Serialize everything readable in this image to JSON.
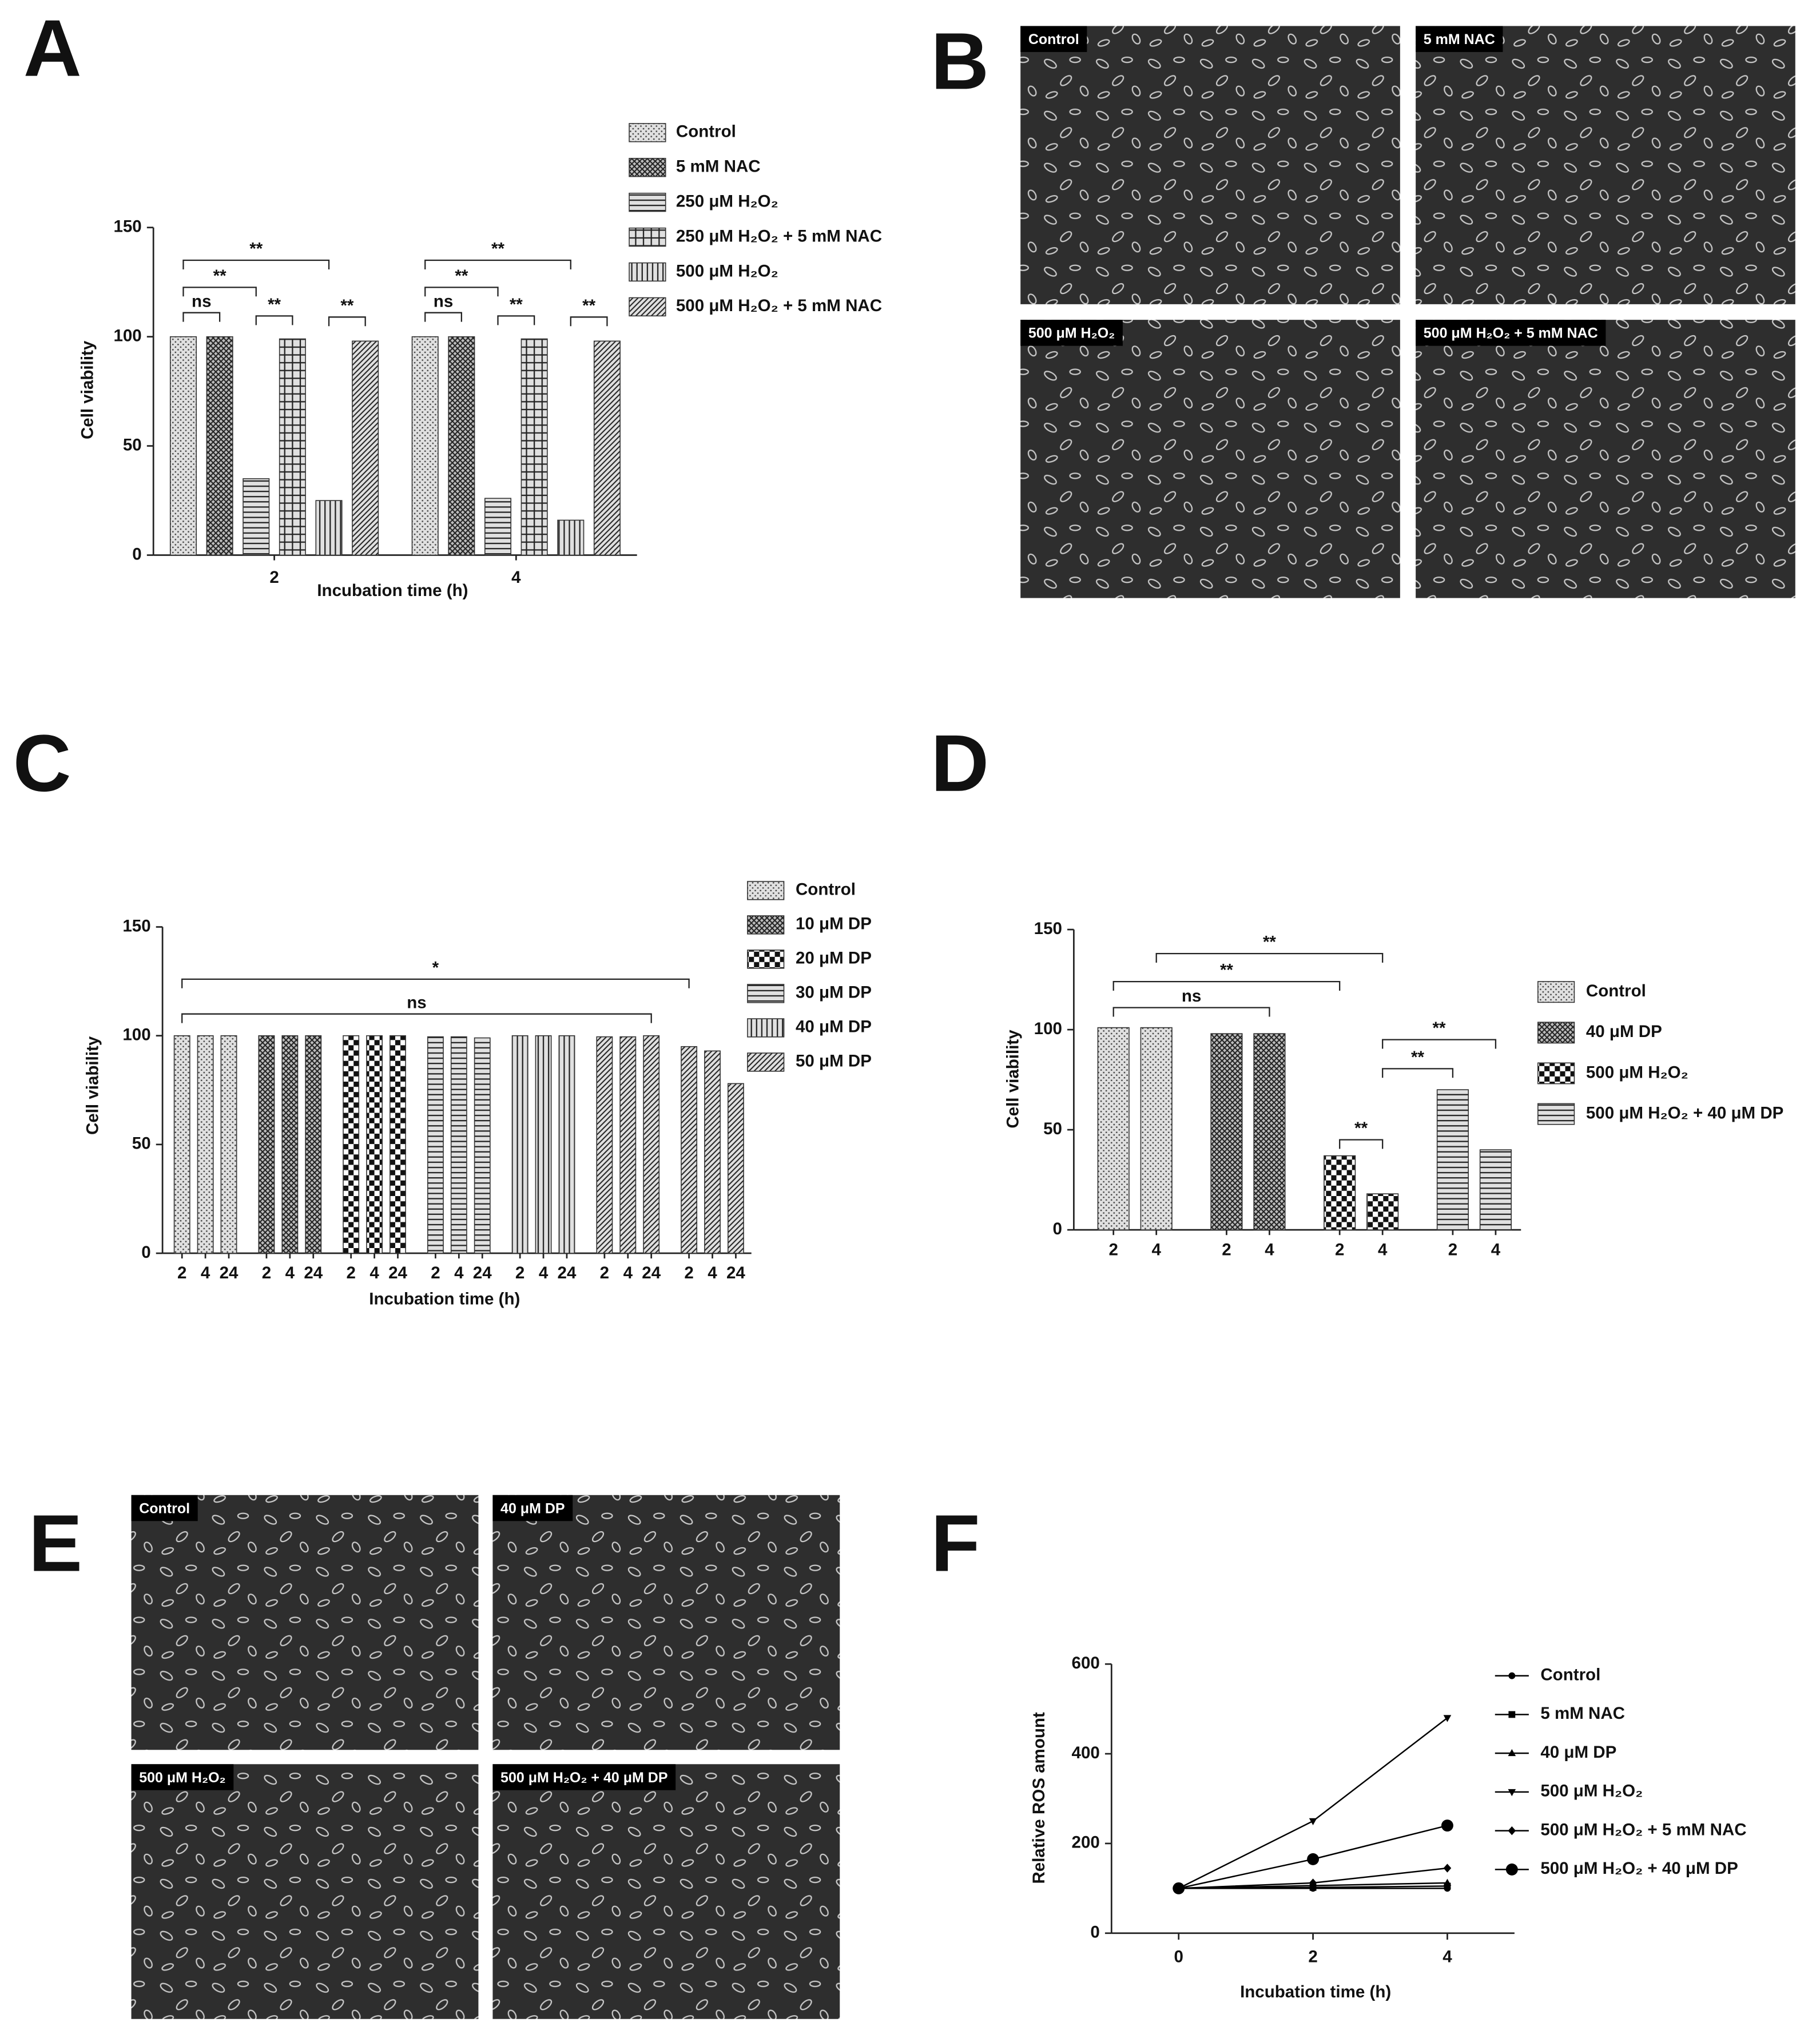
{
  "chart_data": [
    {
      "type": "bar",
      "panel_label": "A",
      "y_label": "Cell viability",
      "x_label": "Incubation time (h)",
      "categories": [
        "2",
        "4"
      ],
      "series": [
        {
          "name": "Control",
          "color": "#e0e0e0",
          "pattern": "dots",
          "values": [
            100,
            100
          ]
        },
        {
          "name": "5 mM NAC",
          "color": "#bdbdbd",
          "pattern": "crosshatch",
          "values": [
            100,
            100
          ]
        },
        {
          "name": "250 μM H₂O₂",
          "color": "#e0e0e0",
          "pattern": "hlines",
          "values": [
            35,
            26
          ]
        },
        {
          "name": "250 μM H₂O₂ + 5 mM NAC",
          "color": "#e0e0e0",
          "pattern": "grid",
          "values": [
            99,
            99
          ]
        },
        {
          "name": "500 μM H₂O₂",
          "color": "#e0e0e0",
          "pattern": "vlines",
          "values": [
            25,
            16
          ]
        },
        {
          "name": "500 μM H₂O₂ + 5 mM NAC",
          "color": "#e0e0e0",
          "pattern": "diag",
          "values": [
            98,
            98
          ]
        }
      ],
      "ylim": [
        0,
        150
      ],
      "yticks": [
        0,
        50,
        100,
        150
      ],
      "annotations": [
        "**",
        "**",
        "ns",
        "**",
        "**",
        "**",
        "**",
        "ns",
        "**",
        "**"
      ]
    },
    {
      "type": "bar",
      "panel_label": "C",
      "y_label": "Cell viability",
      "x_label": "Incubation time (h)",
      "categories": [
        "2",
        "4",
        "24"
      ],
      "series": [
        {
          "name": "Control",
          "color": "#e0e0e0",
          "pattern": "dots",
          "values": [
            100,
            100,
            100
          ]
        },
        {
          "name": "10 μM DP",
          "color": "#bdbdbd",
          "pattern": "crosshatch",
          "values": [
            100,
            100,
            100
          ]
        },
        {
          "name": "20 μM DP",
          "color": "#ffffff",
          "pattern": "checker",
          "values": [
            100,
            100,
            100
          ]
        },
        {
          "name": "30 μM DP",
          "color": "#e0e0e0",
          "pattern": "hlines",
          "values": [
            99.5,
            99.5,
            99
          ]
        },
        {
          "name": "40 μM DP",
          "color": "#e0e0e0",
          "pattern": "vlines",
          "values": [
            100,
            100,
            100
          ]
        },
        {
          "name": "50 μM DP",
          "color": "#e0e0e0",
          "pattern": "diag",
          "values": [
            99.5,
            99.5,
            100
          ]
        },
        {
          "name": null,
          "color": "#e0e0e0",
          "pattern": "diag",
          "values": [
            95,
            93,
            78
          ]
        }
      ],
      "ylim": [
        0,
        150
      ],
      "yticks": [
        0,
        50,
        100,
        150
      ],
      "annotations": [
        "*",
        "ns"
      ]
    },
    {
      "type": "bar",
      "panel_label": "D",
      "y_label": "Cell viability",
      "categories": [
        "2",
        "4"
      ],
      "series": [
        {
          "name": "Control",
          "color": "#e0e0e0",
          "pattern": "dots",
          "values": [
            101,
            101
          ]
        },
        {
          "name": "40 μM DP",
          "color": "#bdbdbd",
          "pattern": "crosshatch",
          "values": [
            98,
            98
          ]
        },
        {
          "name": "500 μM H₂O₂",
          "color": "#ffffff",
          "pattern": "checker",
          "values": [
            37,
            18
          ]
        },
        {
          "name": "500 μM H₂O₂ + 40 μM DP",
          "color": "#e0e0e0",
          "pattern": "hlines",
          "values": [
            70,
            40
          ]
        }
      ],
      "ylim": [
        0,
        150
      ],
      "yticks": [
        0,
        50,
        100,
        150
      ],
      "annotations": [
        "**",
        "**",
        "ns",
        "**",
        "**",
        "**"
      ]
    },
    {
      "type": "line",
      "panel_label": "F",
      "y_label": "Relative ROS amount",
      "x_label": "Incubation time (h)",
      "x": [
        0,
        2,
        4
      ],
      "series": [
        {
          "name": "Control",
          "color": "#000000",
          "marker": "circle",
          "values": [
            100,
            100,
            100
          ]
        },
        {
          "name": "5 mM NAC",
          "color": "#000000",
          "marker": "square",
          "values": [
            100,
            102,
            105
          ]
        },
        {
          "name": "40 μM DP",
          "color": "#000000",
          "marker": "triangle",
          "values": [
            100,
            106,
            112
          ]
        },
        {
          "name": "500 μM H₂O₂",
          "color": "#000000",
          "marker": "triangle-down",
          "values": [
            100,
            250,
            480
          ]
        },
        {
          "name": "500 μM H₂O₂ + 5 mM NAC",
          "color": "#000000",
          "marker": "diamond",
          "values": [
            100,
            112,
            145
          ]
        },
        {
          "name": "500 μM H₂O₂ + 40 μM DP",
          "color": "#000000",
          "marker": "circle-large",
          "values": [
            100,
            165,
            240
          ]
        }
      ],
      "xlim": [
        -1,
        5
      ],
      "xticks": [
        0,
        2,
        4
      ],
      "ylim": [
        0,
        600
      ],
      "yticks": [
        0,
        200,
        400,
        600
      ]
    }
  ],
  "image_panels": [
    {
      "panel_label": "B",
      "captions": [
        "Control",
        "5 mM NAC",
        "500 μM H₂O₂",
        "500 μM H₂O₂ + 5 mM NAC"
      ]
    },
    {
      "panel_label": "E",
      "captions": [
        "Control",
        "40 μM DP",
        "500 μM H₂O₂",
        "500 μM H₂O₂ + 40 μM DP"
      ]
    }
  ]
}
